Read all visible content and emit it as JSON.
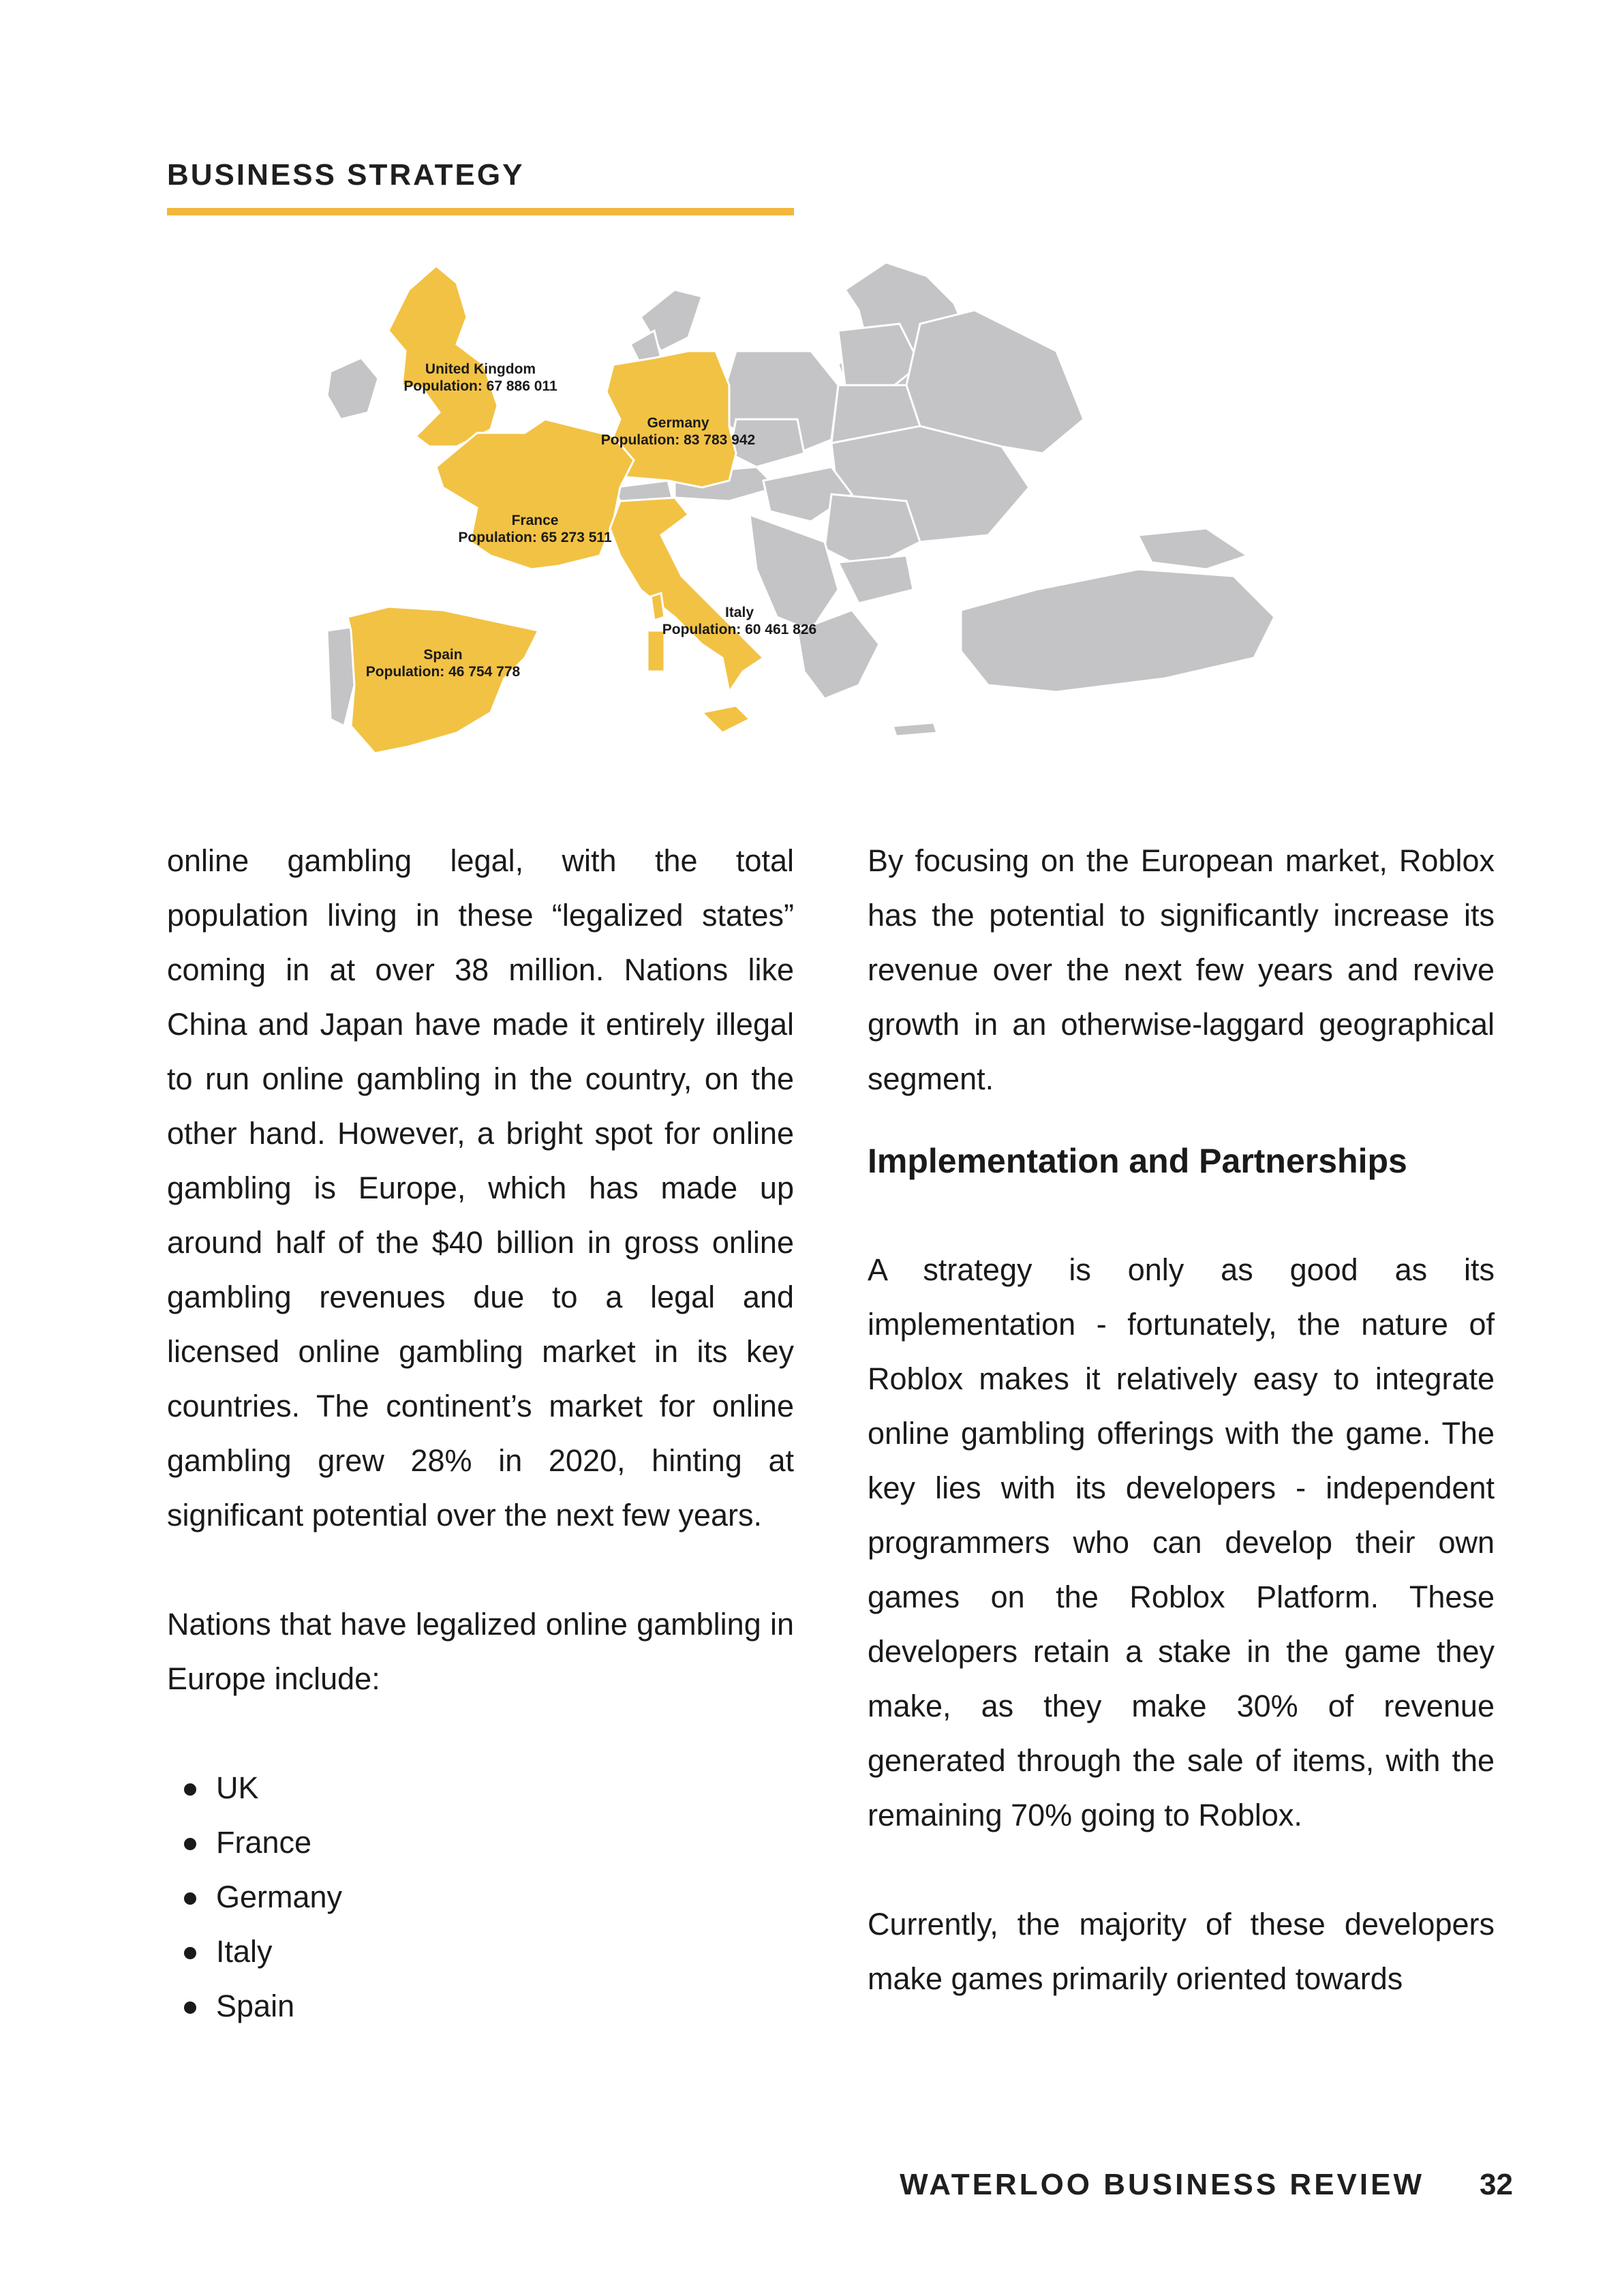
{
  "header": {
    "section": "BUSINESS STRATEGY"
  },
  "map": {
    "highlight_color": "#f2c244",
    "base_color": "#c4c3c6",
    "countries": [
      {
        "name": "United Kingdom",
        "population": "Population: 67 886 011"
      },
      {
        "name": "Germany",
        "population": "Population: 83 783 942"
      },
      {
        "name": "France",
        "population": "Population: 65 273 511"
      },
      {
        "name": "Italy",
        "population": "Population: 60 461 826"
      },
      {
        "name": "Spain",
        "population": "Population: 46 754 778"
      }
    ]
  },
  "left_column": {
    "p1": "online gambling legal, with the total population living in these “legalized states” coming in at over 38 million. Nations like China and Japan have made it entirely illegal to run online gambling in the country, on the other hand. However, a bright spot for online gambling is Europe, which has made up around half of the $40 billion in gross online gambling revenues due to a legal and licensed online gambling market in its key countries. The continent’s market for online gambling grew 28% in 2020, hinting at significant potential over the next few years.",
    "p2": "Nations that have legalized online gambling in Europe include:",
    "list": [
      "UK",
      "France",
      "Germany",
      "Italy",
      "Spain"
    ]
  },
  "right_column": {
    "p1": "By focusing on the European market, Roblox has the potential to significantly increase its revenue over the next few years and revive growth in an otherwise-laggard geographical segment.",
    "heading": "Implementation and Partnerships",
    "p2": "A strategy is only as good as its implementation - fortunately, the nature of Roblox makes it relatively easy to integrate online gambling offerings with the game. The key lies with its developers - independent programmers who can develop their own games on the Roblox Platform. These developers retain a stake in the game they make, as they make 30% of revenue generated through the sale of items, with the remaining 70% going to Roblox.",
    "p3": "Currently, the majority of these developers make games primarily oriented towards"
  },
  "footer": {
    "publication": "WATERLOO BUSINESS REVIEW",
    "page": "32"
  }
}
